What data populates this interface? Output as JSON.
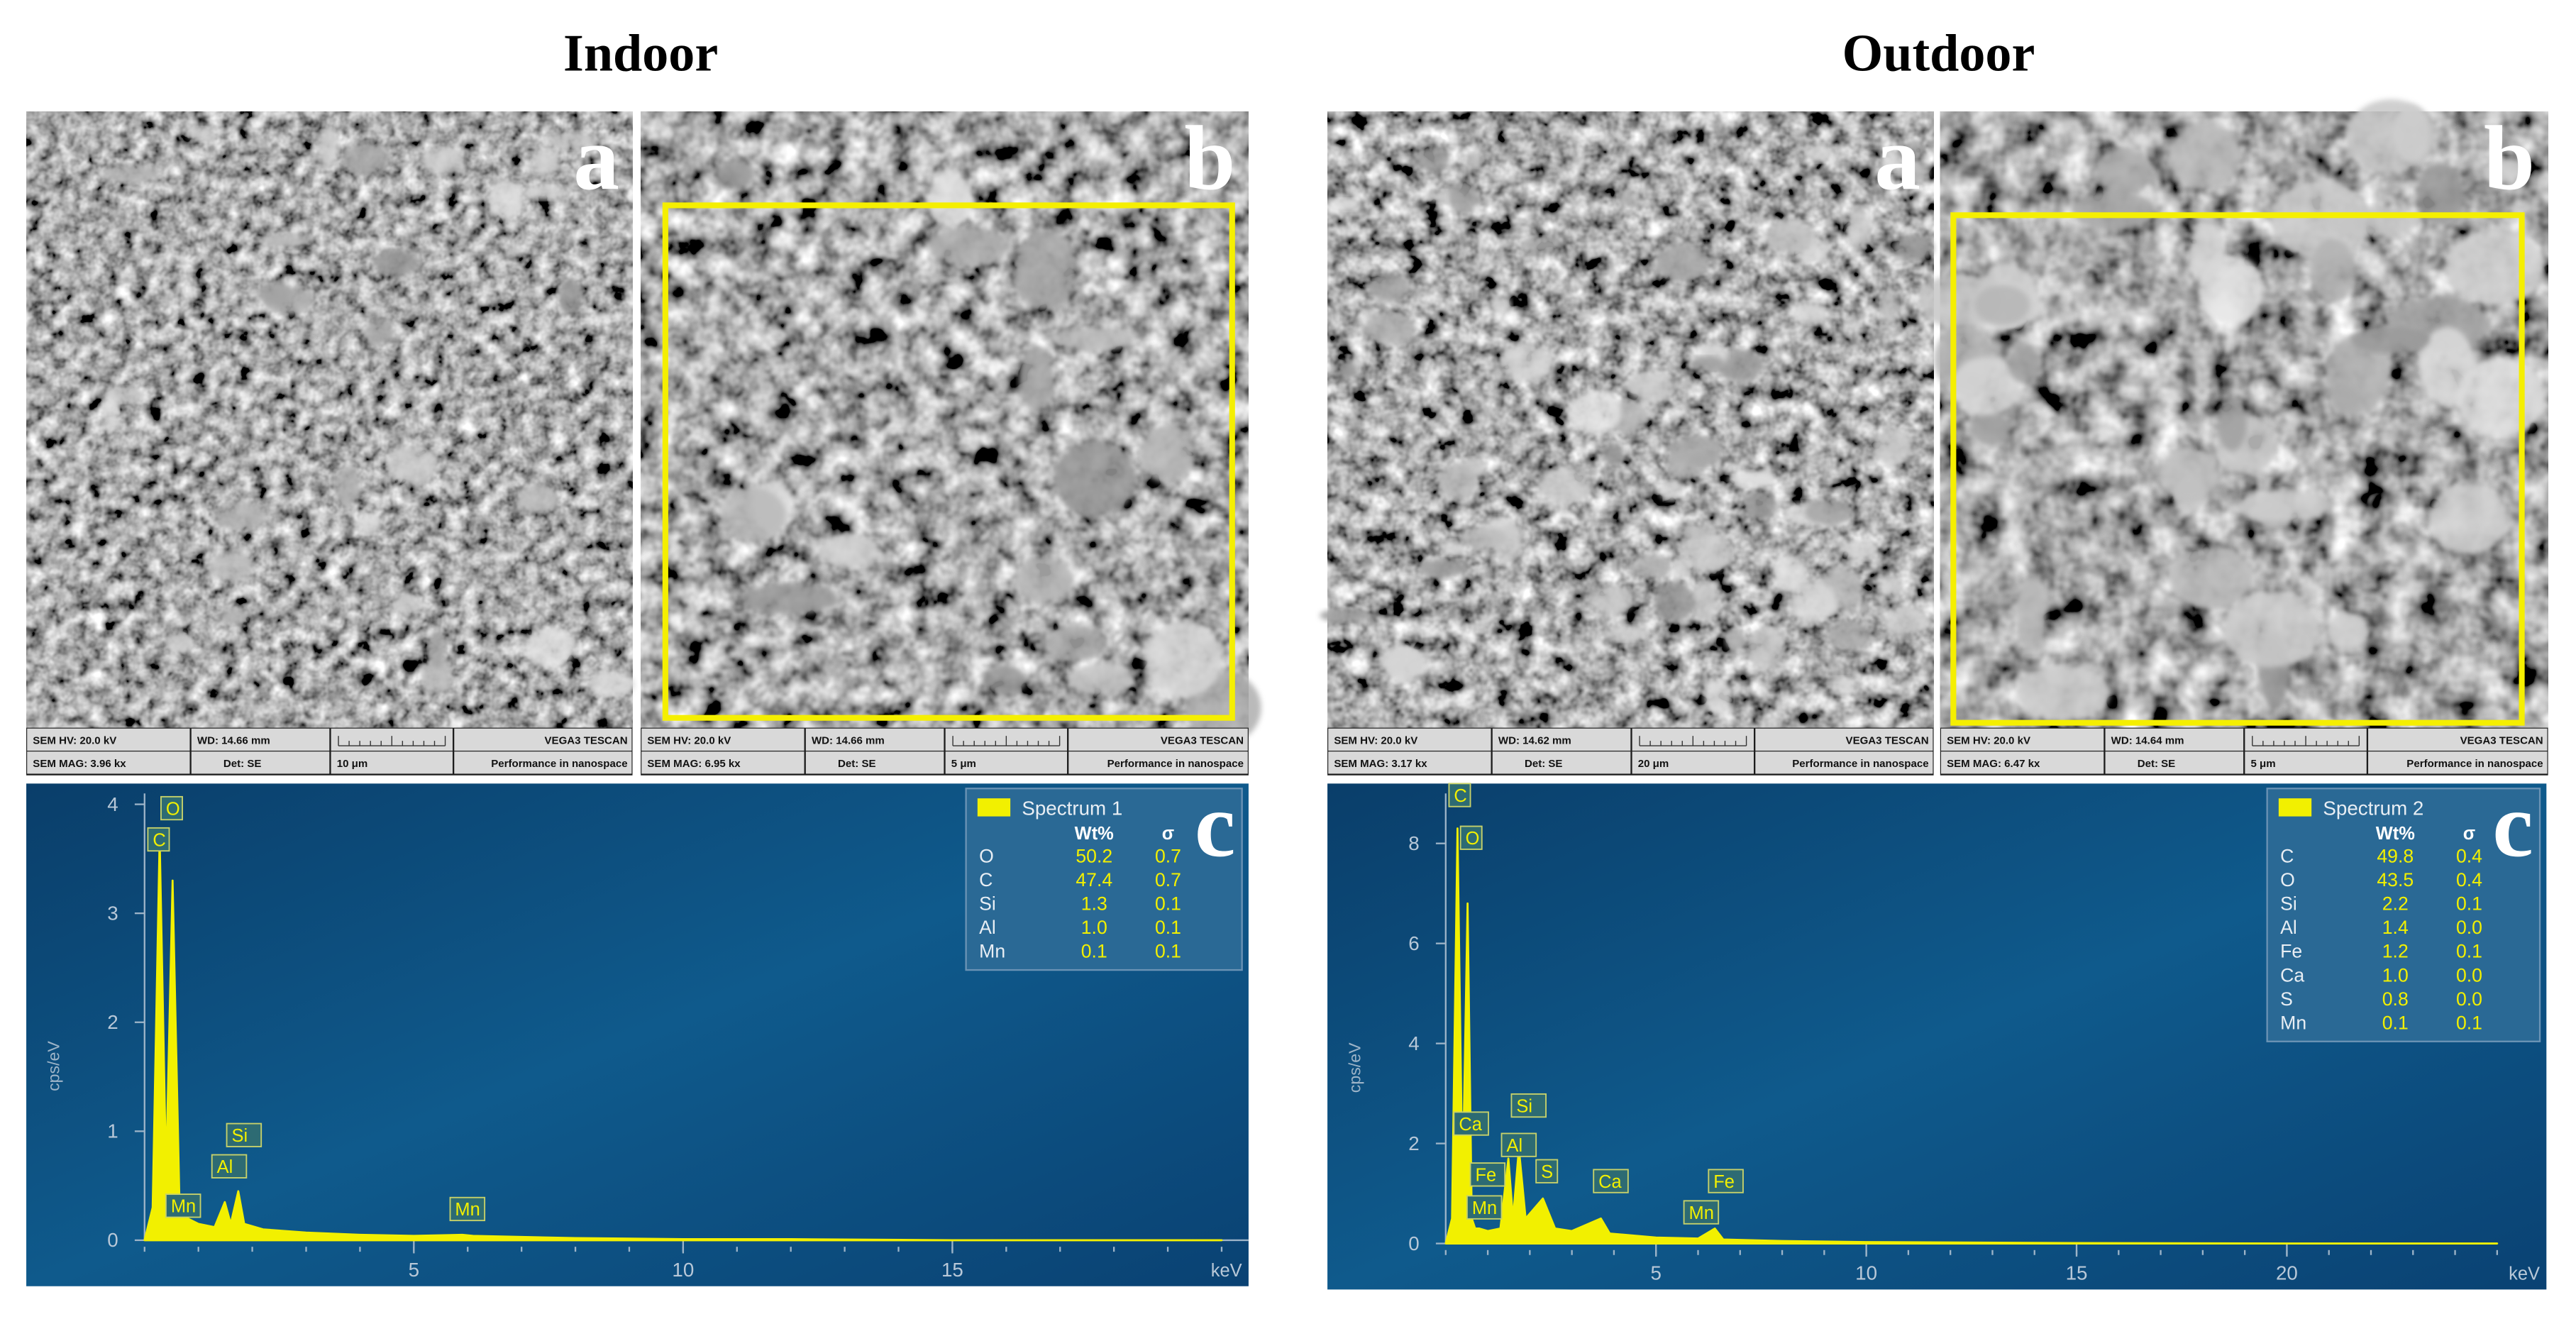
{
  "figure": {
    "columns": [
      {
        "title": "Indoor",
        "sem": [
          {
            "letter": "a",
            "hv": "SEM HV: 20.0 kV",
            "wd": "WD: 14.66 mm",
            "brand": "VEGA3 TESCAN",
            "mag": "SEM MAG: 3.96 kx",
            "det": "Det: SE",
            "scale": "10 μm",
            "slogan": "Performance in nanospace"
          },
          {
            "letter": "b",
            "hv": "SEM HV: 20.0 kV",
            "wd": "WD: 14.66 mm",
            "brand": "VEGA3 TESCAN",
            "mag": "SEM MAG: 6.95 kx",
            "det": "Det: SE",
            "scale": "5 μm",
            "slogan": "Performance in nanospace"
          }
        ]
      },
      {
        "title": "Outdoor",
        "sem": [
          {
            "letter": "a",
            "hv": "SEM HV: 20.0 kV",
            "wd": "WD: 14.62 mm",
            "brand": "VEGA3 TESCAN",
            "mag": "SEM MAG: 3.17 kx",
            "det": "Det: SE",
            "scale": "20 μm",
            "slogan": "Performance in nanospace"
          },
          {
            "letter": "b",
            "hv": "SEM HV: 20.0 kV",
            "wd": "WD: 14.64 mm",
            "brand": "VEGA3 TESCAN",
            "mag": "SEM MAG: 6.47 kx",
            "det": "Det: SE",
            "scale": "5 μm",
            "slogan": "Performance in nanospace"
          }
        ]
      }
    ]
  },
  "chart_data": [
    {
      "type": "line",
      "label": "c",
      "xlabel": "keV",
      "ylabel": "cps/eV",
      "x": [
        0,
        0.15,
        0.28,
        0.4,
        0.52,
        0.65,
        0.8,
        1.0,
        1.3,
        1.49,
        1.6,
        1.74,
        1.85,
        2.2,
        3,
        4,
        5,
        5.9,
        6.1,
        7,
        8,
        10,
        12,
        15,
        20
      ],
      "series": [
        {
          "name": "Spectrum 1",
          "color": "#f2f000",
          "values": [
            0,
            0.3,
            3.7,
            0.6,
            3.3,
            0.3,
            0.2,
            0.15,
            0.12,
            0.35,
            0.15,
            0.45,
            0.15,
            0.1,
            0.07,
            0.05,
            0.04,
            0.05,
            0.04,
            0.03,
            0.02,
            0.01,
            0.01,
            0,
            0
          ]
        }
      ],
      "xlim": [
        0,
        20.5
      ],
      "ylim": [
        0,
        4.1
      ],
      "xticks": [
        5,
        10,
        15
      ],
      "yticks": [
        0,
        1,
        2,
        3,
        4
      ],
      "peak_labels": [
        "O",
        "C",
        "Si",
        "Al",
        "Mn",
        "Mn"
      ],
      "table": {
        "header": [
          "Wt%",
          "σ"
        ],
        "rows": [
          [
            "O",
            "50.2",
            "0.7"
          ],
          [
            "C",
            "47.4",
            "0.7"
          ],
          [
            "Si",
            "1.3",
            "0.1"
          ],
          [
            "Al",
            "1.0",
            "0.1"
          ],
          [
            "Mn",
            "0.1",
            "0.1"
          ]
        ]
      }
    },
    {
      "type": "line",
      "label": "c",
      "xlabel": "keV",
      "ylabel": "cps/eV",
      "x": [
        0,
        0.15,
        0.28,
        0.4,
        0.52,
        0.62,
        0.7,
        0.8,
        1.0,
        1.3,
        1.49,
        1.6,
        1.74,
        1.9,
        2.31,
        2.6,
        3.0,
        3.69,
        3.9,
        5,
        6.0,
        6.4,
        6.6,
        8,
        10,
        15,
        20,
        25
      ],
      "series": [
        {
          "name": "Spectrum 2",
          "color": "#f2f000",
          "values": [
            0,
            0.5,
            8.3,
            1.0,
            6.8,
            0.5,
            0.3,
            0.3,
            0.25,
            0.3,
            1.7,
            0.5,
            1.9,
            0.5,
            0.9,
            0.3,
            0.25,
            0.5,
            0.2,
            0.12,
            0.1,
            0.3,
            0.08,
            0.05,
            0.03,
            0.01,
            0,
            0
          ]
        }
      ],
      "xlim": [
        0,
        25
      ],
      "ylim": [
        0,
        9
      ],
      "xticks": [
        5,
        10,
        15,
        20
      ],
      "yticks": [
        0,
        2,
        4,
        6,
        8
      ],
      "peak_labels": [
        "C",
        "O",
        "Si",
        "Ca",
        "Al",
        "Fe",
        "S",
        "Ca",
        "Fe",
        "Mn",
        "Mn"
      ],
      "table": {
        "header": [
          "Wt%",
          "σ"
        ],
        "rows": [
          [
            "C",
            "49.8",
            "0.4"
          ],
          [
            "O",
            "43.5",
            "0.4"
          ],
          [
            "Si",
            "2.2",
            "0.1"
          ],
          [
            "Al",
            "1.4",
            "0.0"
          ],
          [
            "Fe",
            "1.2",
            "0.1"
          ],
          [
            "Ca",
            "1.0",
            "0.0"
          ],
          [
            "S",
            "0.8",
            "0.0"
          ],
          [
            "Mn",
            "0.1",
            "0.1"
          ]
        ]
      }
    }
  ]
}
